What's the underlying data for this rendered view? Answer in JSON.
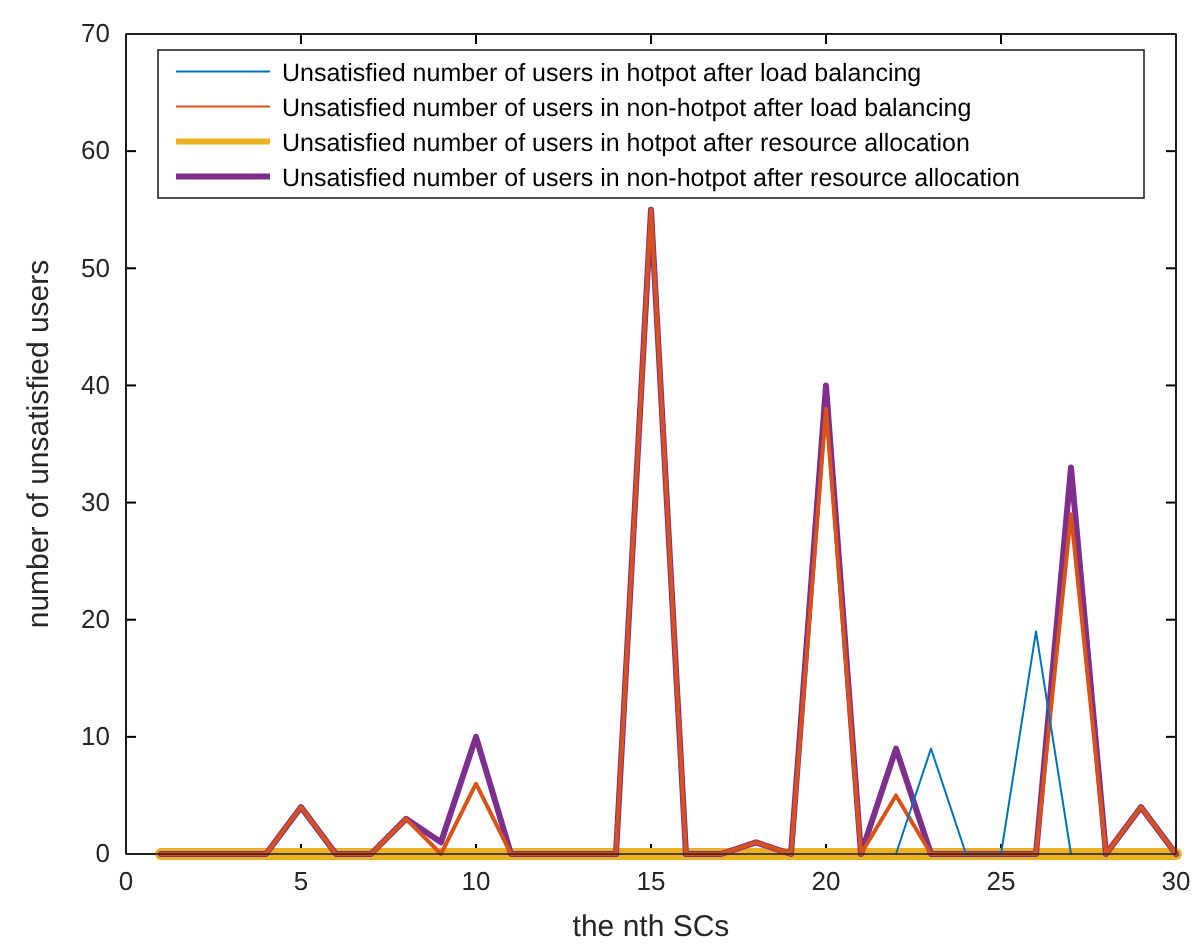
{
  "chart_data": {
    "type": "line",
    "xlabel": "the nth SCs",
    "ylabel": "number of unsatisfied users",
    "x": [
      1,
      2,
      3,
      4,
      5,
      6,
      7,
      8,
      9,
      10,
      11,
      12,
      13,
      14,
      15,
      16,
      17,
      18,
      19,
      20,
      21,
      22,
      23,
      24,
      25,
      26,
      27,
      28,
      29,
      30
    ],
    "xlim": [
      0,
      30
    ],
    "xticks": [
      0,
      5,
      10,
      15,
      20,
      25,
      30
    ],
    "ylim": [
      0,
      70
    ],
    "yticks": [
      0,
      10,
      20,
      30,
      40,
      50,
      60,
      70
    ],
    "legend": "top",
    "grid": false,
    "marker": "none",
    "line_style": "solid",
    "series": [
      {
        "name": "Unsatisfied number of users in hotpot after load balancing",
        "color": "#0072bd",
        "values": [
          null,
          null,
          null,
          null,
          null,
          null,
          null,
          null,
          null,
          null,
          null,
          null,
          null,
          null,
          null,
          null,
          null,
          null,
          null,
          null,
          null,
          0,
          9,
          0,
          0,
          19,
          0,
          null,
          null,
          null
        ]
      },
      {
        "name": "Unsatisfied number of users in non-hotpot after load balancing",
        "color": "#d95319",
        "values": [
          0,
          0,
          0,
          0,
          4,
          0,
          0,
          3,
          0,
          6,
          0,
          0,
          0,
          0,
          55,
          0,
          0,
          1,
          0,
          38,
          0,
          5,
          0,
          0,
          0,
          0,
          29,
          0,
          4,
          0
        ]
      },
      {
        "name": "Unsatisfied number of users in hotpot after resource allocation",
        "color": "#edb120",
        "values": [
          0,
          0,
          0,
          0,
          0,
          0,
          0,
          0,
          0,
          0,
          0,
          0,
          0,
          0,
          0,
          0,
          0,
          0,
          0,
          0,
          0,
          0,
          0,
          0,
          0,
          0,
          0,
          0,
          0,
          0
        ]
      },
      {
        "name": "Unsatisfied number of users in non-hotpot after resource allocation",
        "color": "#7e2f8e",
        "values": [
          0,
          0,
          0,
          0,
          4,
          0,
          0,
          3,
          1,
          10,
          0,
          0,
          0,
          0,
          55,
          0,
          0,
          1,
          0,
          40,
          0,
          9,
          0,
          0,
          0,
          0,
          33,
          0,
          4,
          0
        ]
      }
    ]
  }
}
